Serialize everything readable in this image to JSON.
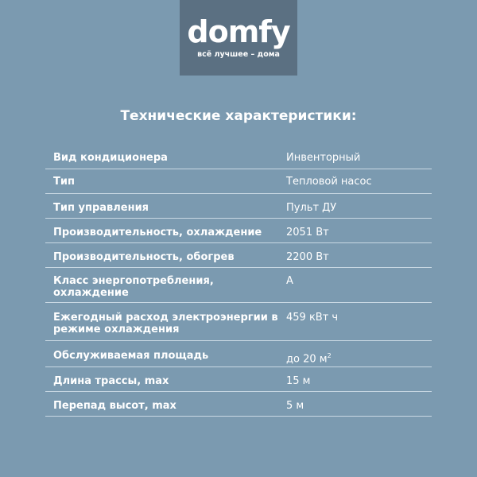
{
  "logo": {
    "word": "domfy",
    "tagline": "всё лучшее – дома"
  },
  "title": "Технические характеристики:",
  "rows": [
    {
      "key": "Вид кондиционера",
      "value": "Инвенторный"
    },
    {
      "key": "Тип",
      "value": "Тепловой насос"
    },
    {
      "key": "Тип управления",
      "value": "Пульт ДУ"
    },
    {
      "key": "Производительность, охлаждение",
      "value": "2051 Вт"
    },
    {
      "key": "Производительность, обогрев",
      "value": "2200 Вт"
    },
    {
      "key": "Класс энергопотребления, охлаждение",
      "value": "A"
    },
    {
      "key": "Ежегодный расход электроэнергии в режиме охлаждения",
      "value": "459 кВт ч"
    },
    {
      "key": "Обслуживаемая площадь",
      "value": "до 20 м",
      "sup": "2"
    },
    {
      "key": "Длина трассы, max",
      "value": "15 м"
    },
    {
      "key": "Перепад высот, max",
      "value": "5 м"
    }
  ]
}
